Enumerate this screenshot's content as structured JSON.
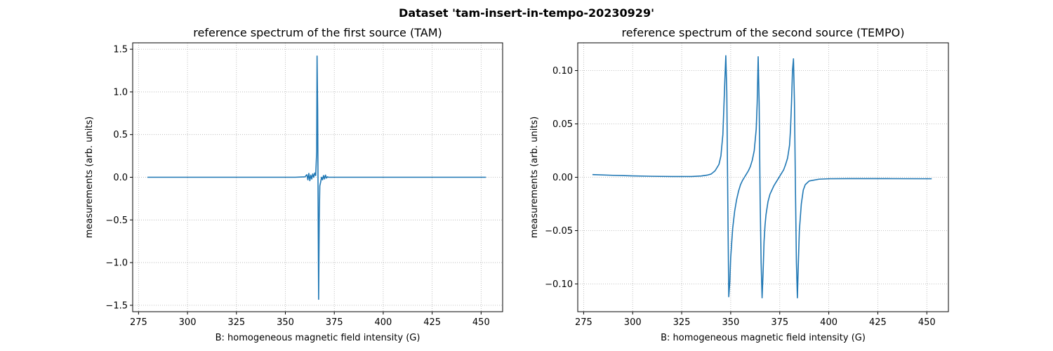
{
  "figure": {
    "suptitle": "Dataset 'tam-insert-in-tempo-20230929'"
  },
  "chart_data": [
    {
      "type": "line",
      "title": "reference spectrum of the first source (TAM)",
      "xlabel": "B: homogeneous magnetic field intensity (G)",
      "ylabel": "measurements (arb. units)",
      "xlim": [
        272,
        461
      ],
      "ylim": [
        -1.575,
        1.575
      ],
      "xticks": [
        275,
        300,
        325,
        350,
        375,
        400,
        425,
        450
      ],
      "yticks": [
        -1.5,
        -1.0,
        -0.5,
        0.0,
        0.5,
        1.0,
        1.5
      ],
      "grid": true,
      "color": "#1f77b4",
      "series": [
        {
          "x": [
            279.5,
            300,
            330,
            355,
            360,
            361,
            361.5,
            362,
            362.5,
            363,
            363.5,
            364,
            364.5,
            365,
            365.5,
            366,
            366.2,
            366.5,
            366.8,
            367.0,
            367.3,
            367.6,
            368,
            368.5,
            369,
            369.5,
            370,
            370.5,
            371,
            371.5,
            372,
            373,
            375,
            380,
            400,
            430,
            452.5
          ],
          "y": [
            0.0,
            0.0,
            0.0,
            0.0,
            0.005,
            0.03,
            -0.03,
            0.045,
            -0.04,
            0.025,
            -0.02,
            0.04,
            0.0,
            0.05,
            0.02,
            0.3,
            1.42,
            0.8,
            -0.6,
            -1.43,
            -0.5,
            -0.1,
            -0.06,
            0.0,
            -0.03,
            0.02,
            -0.02,
            0.025,
            -0.01,
            0.005,
            0.0,
            0.0,
            0.0,
            0.0,
            0.0,
            0.0,
            0.0
          ]
        }
      ]
    },
    {
      "type": "line",
      "title": "reference spectrum of the second source (TEMPO)",
      "xlabel": "B: homogeneous magnetic field intensity (G)",
      "ylabel": "measurements (arb. units)",
      "xlim": [
        272,
        461
      ],
      "ylim": [
        -0.126,
        0.126
      ],
      "xticks": [
        275,
        300,
        325,
        350,
        375,
        400,
        425,
        450
      ],
      "yticks": [
        -0.1,
        -0.05,
        0.0,
        0.05,
        0.1
      ],
      "grid": true,
      "color": "#1f77b4",
      "series": [
        {
          "x": [
            279.5,
            290,
            300,
            310,
            320,
            330,
            335,
            338,
            340,
            342,
            344,
            345,
            346,
            347,
            347.5,
            348,
            348.5,
            349,
            349.5,
            350,
            351,
            352,
            353,
            354,
            355,
            356,
            357,
            358,
            359,
            360,
            361,
            362,
            363,
            363.5,
            364,
            364.5,
            365,
            365.5,
            366,
            366.5,
            367,
            367.5,
            368,
            369,
            370,
            371,
            372,
            373,
            374,
            375,
            376,
            377,
            378,
            379,
            380,
            380.5,
            381,
            381.5,
            382,
            382.5,
            383,
            383.5,
            384,
            384.5,
            385,
            386,
            387,
            388,
            390,
            395,
            400,
            410,
            430,
            452.5
          ],
          "y": [
            0.0025,
            0.0018,
            0.0013,
            0.0009,
            0.0007,
            0.0007,
            0.0012,
            0.002,
            0.003,
            0.006,
            0.012,
            0.02,
            0.04,
            0.09,
            0.114,
            0.08,
            -0.02,
            -0.112,
            -0.1,
            -0.075,
            -0.048,
            -0.032,
            -0.021,
            -0.013,
            -0.007,
            -0.003,
            0.0,
            0.003,
            0.006,
            0.01,
            0.016,
            0.025,
            0.045,
            0.07,
            0.113,
            0.07,
            -0.02,
            -0.08,
            -0.113,
            -0.09,
            -0.06,
            -0.045,
            -0.035,
            -0.023,
            -0.016,
            -0.012,
            -0.008,
            -0.005,
            -0.002,
            0.001,
            0.004,
            0.007,
            0.012,
            0.018,
            0.03,
            0.045,
            0.07,
            0.1,
            0.111,
            0.07,
            -0.01,
            -0.08,
            -0.113,
            -0.08,
            -0.05,
            -0.025,
            -0.012,
            -0.007,
            -0.0035,
            -0.0018,
            -0.0014,
            -0.0013,
            -0.0013,
            -0.0014
          ]
        }
      ]
    }
  ]
}
